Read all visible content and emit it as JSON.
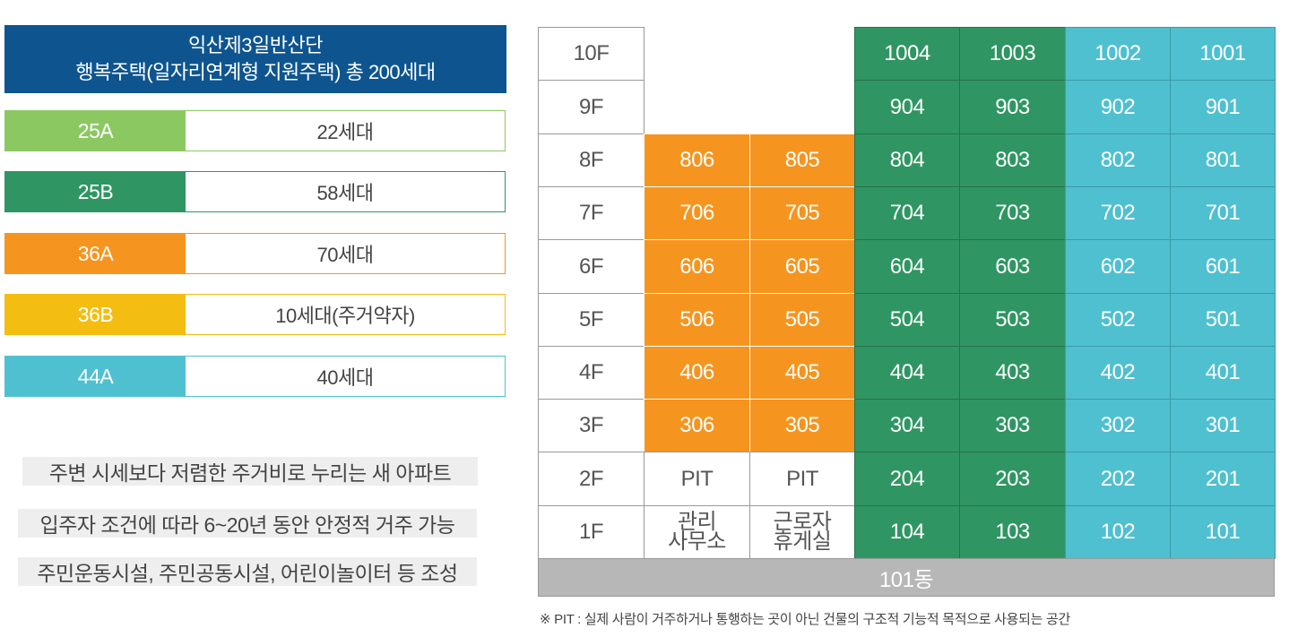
{
  "title": {
    "line1": "익산제3일반산단",
    "line2": "행복주택(일자리연계형 지원주택) 총 200세대"
  },
  "legend": [
    {
      "code": "25A",
      "count": "22세대",
      "color": "#8cc862"
    },
    {
      "code": "25B",
      "count": "58세대",
      "color": "#2f9663"
    },
    {
      "code": "36A",
      "count": "70세대",
      "color": "#f5951f"
    },
    {
      "code": "36B",
      "count": "10세대(주거약자)",
      "color": "#f4bd11"
    },
    {
      "code": "44A",
      "count": "40세대",
      "color": "#4fc0d0"
    }
  ],
  "notes": [
    "주변 시세보다 저렴한 주거비로 누리는 새 아파트",
    "입주자 조건에 따라 6~20년 동안 안정적 거주 가능",
    "주민운동시설, 주민공동시설, 어린이놀이터 등 조성"
  ],
  "building": {
    "name": "101동",
    "floors": [
      {
        "label": "10F",
        "units": [
          "",
          "",
          "1004",
          "1003",
          "1002",
          "1001"
        ]
      },
      {
        "label": "9F",
        "units": [
          "",
          "",
          "904",
          "903",
          "902",
          "901"
        ]
      },
      {
        "label": "8F",
        "units": [
          "806",
          "805",
          "804",
          "803",
          "802",
          "801"
        ]
      },
      {
        "label": "7F",
        "units": [
          "706",
          "705",
          "704",
          "703",
          "702",
          "701"
        ]
      },
      {
        "label": "6F",
        "units": [
          "606",
          "605",
          "604",
          "603",
          "602",
          "601"
        ]
      },
      {
        "label": "5F",
        "units": [
          "506",
          "505",
          "504",
          "503",
          "502",
          "501"
        ]
      },
      {
        "label": "4F",
        "units": [
          "406",
          "405",
          "404",
          "403",
          "402",
          "401"
        ]
      },
      {
        "label": "3F",
        "units": [
          "306",
          "305",
          "304",
          "303",
          "302",
          "301"
        ]
      },
      {
        "label": "2F",
        "units": [
          "PIT",
          "PIT",
          "204",
          "203",
          "202",
          "201"
        ]
      },
      {
        "label": "1F",
        "units": [
          "관리 사무소",
          "근로자 휴게실",
          "104",
          "103",
          "102",
          "101"
        ]
      }
    ]
  },
  "footnote": "※ PIT : 실제 사람이 거주하거나 통행하는 곳이 아닌 건물의 구조적 기능적 목적으로 사용되는 공간"
}
